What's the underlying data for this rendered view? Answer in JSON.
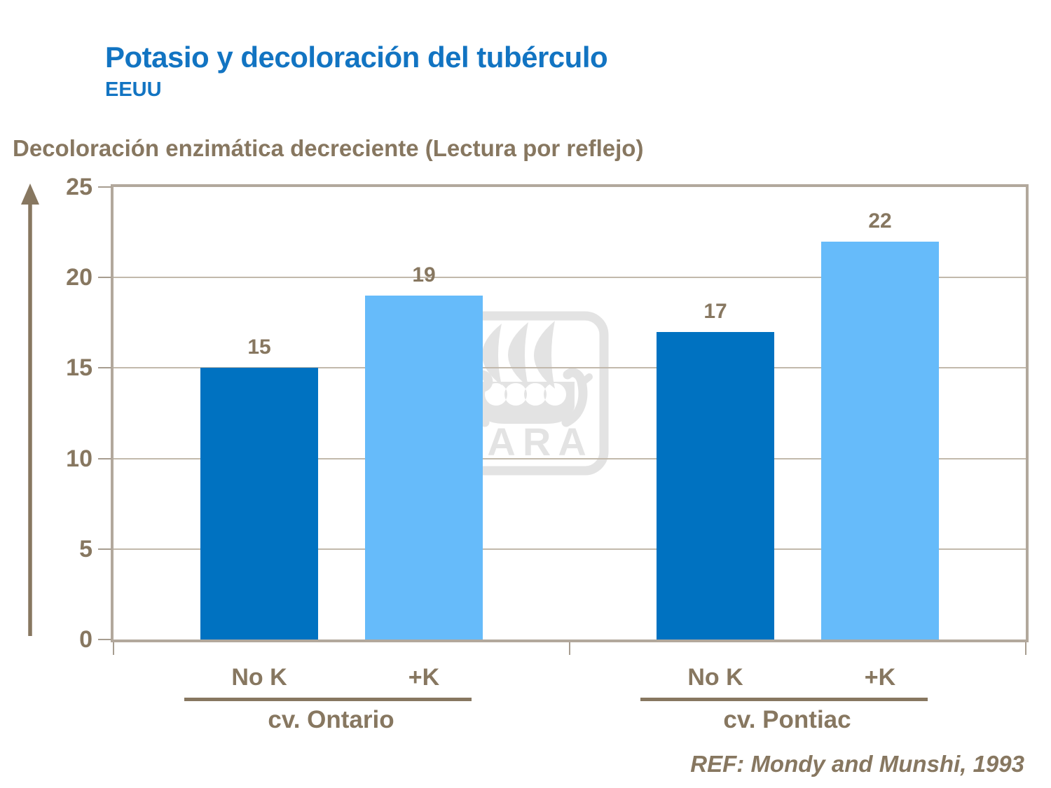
{
  "title": "Potasio y decoloración del tubérculo",
  "subtitle": "EEUU",
  "axis_title": "Decoloración enzimática decreciente (Lectura por reflejo)",
  "reference": "REF: Mondy and Munshi, 1993",
  "watermark": {
    "text": "YARA"
  },
  "colors": {
    "title_blue": "#1274C2",
    "text_brown": "#877760",
    "bar_dark_blue": "#0072C1",
    "bar_light_blue": "#66BBFA",
    "axis_line": "#B2A89C",
    "gridline": "#C2B9AC",
    "tick": "#A79D90"
  },
  "chart_data": {
    "type": "bar",
    "categories": [
      "cv. Ontario",
      "cv. Pontiac"
    ],
    "series": [
      {
        "name": "No K",
        "values": [
          15,
          17
        ],
        "color": "#0072C1"
      },
      {
        "name": "+K",
        "values": [
          19,
          22
        ],
        "color": "#66BBFA"
      }
    ],
    "title": "Potasio y decoloración del tubérculo (EEUU)",
    "xlabel": "",
    "ylabel": "Decoloración enzimática decreciente (Lectura por reflejo)",
    "ylim": [
      0,
      25
    ],
    "yticks": [
      0,
      5,
      10,
      15,
      20,
      25
    ],
    "grid": true,
    "legend": "none",
    "bar_labels": [
      [
        15,
        17
      ],
      [
        19,
        22
      ]
    ],
    "annotation": "REF: Mondy and Munshi, 1993"
  }
}
